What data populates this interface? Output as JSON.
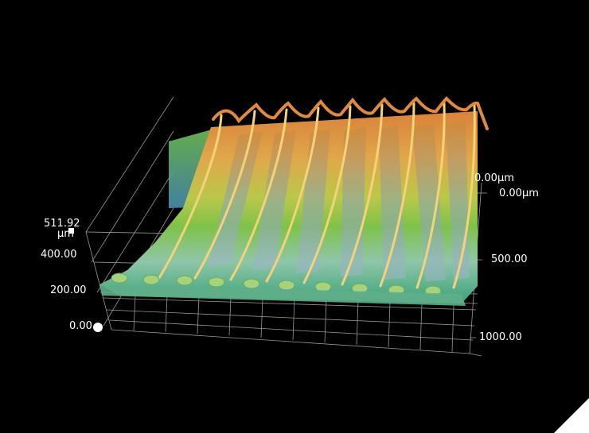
{
  "viewer": {
    "z_axis": {
      "max_label": "511.92",
      "unit_label": "μm",
      "ticks": [
        "400.00",
        "200.00",
        "0.00"
      ]
    },
    "y_axis": {
      "origin_top_label": "0.00μm",
      "origin_label": "0.00μm",
      "ticks": [
        "500.00",
        "1000.00"
      ]
    },
    "colors": {
      "background": "#000000",
      "surface_high": "#d9823a",
      "surface_mid": "#7fc24a",
      "surface_low": "#3aa37a",
      "grid": "#bfbfbf"
    }
  }
}
